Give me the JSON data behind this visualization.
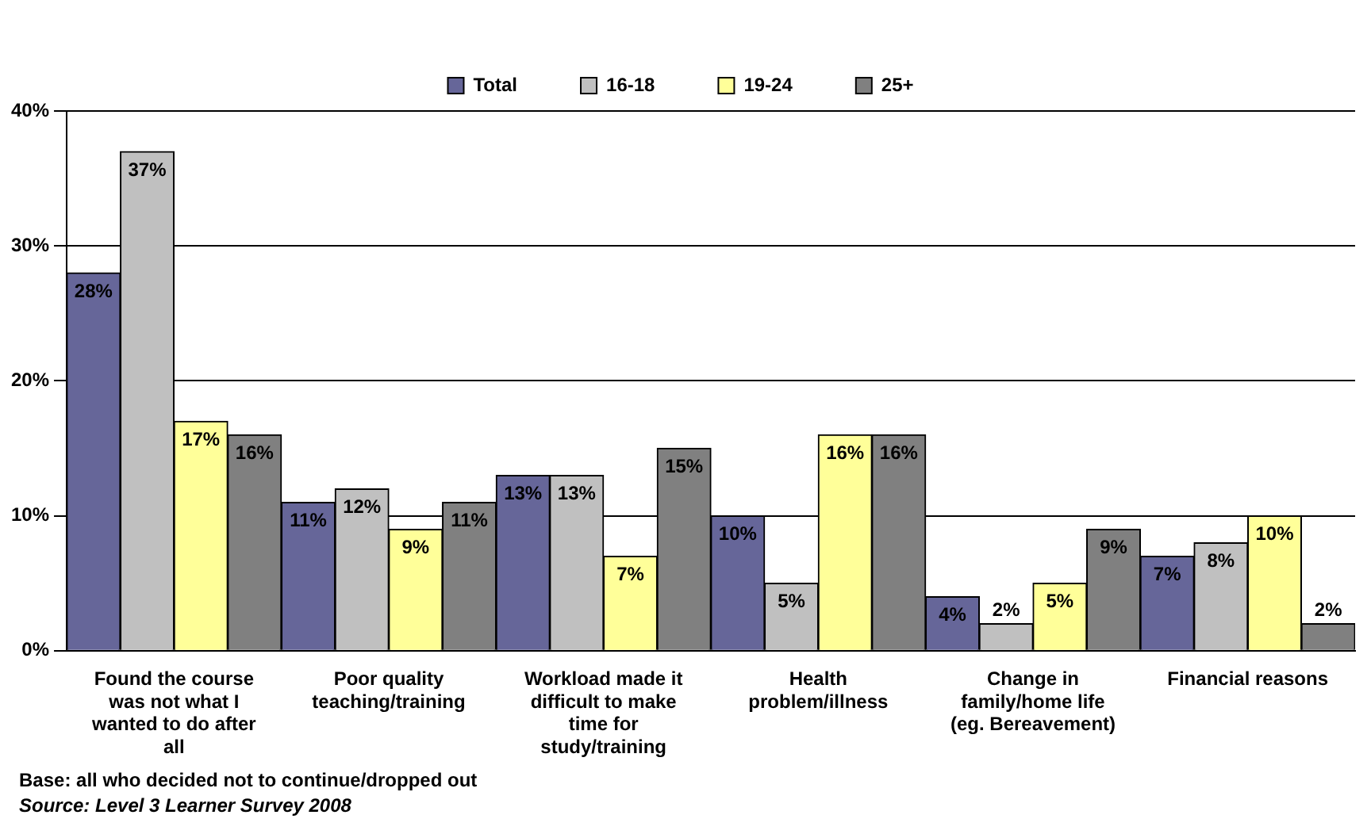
{
  "chart_data": {
    "type": "bar",
    "categories": [
      "Found the course was not what I wanted to do after all",
      "Poor quality teaching/training",
      "Workload made it difficult to make time for study/training",
      "Health problem/illness",
      "Change in family/home life (eg. Bereavement)",
      "Financial reasons"
    ],
    "series": [
      {
        "name": "Total",
        "color": "#666699",
        "values": [
          28,
          11,
          13,
          10,
          4,
          7
        ],
        "value_labels": [
          "28%",
          "11%",
          "13%",
          "10%",
          "4%",
          "7%"
        ]
      },
      {
        "name": "16-18",
        "color": "#c0c0c0",
        "values": [
          37,
          12,
          13,
          5,
          2,
          8
        ],
        "value_labels": [
          "37%",
          "12%",
          "13%",
          "5%",
          "2%",
          "8%"
        ]
      },
      {
        "name": "19-24",
        "color": "#ffff99",
        "values": [
          17,
          9,
          7,
          16,
          5,
          10
        ],
        "value_labels": [
          "17%",
          "9%",
          "7%",
          "16%",
          "5%",
          "10%"
        ]
      },
      {
        "name": "25+",
        "color": "#808080",
        "values": [
          16,
          11,
          15,
          16,
          9,
          2
        ],
        "value_labels": [
          "16%",
          "11%",
          "15%",
          "16%",
          "9%",
          "2%"
        ]
      }
    ],
    "ylim": [
      0,
      40
    ],
    "yticks": [
      {
        "value": 0,
        "label": "0%"
      },
      {
        "value": 10,
        "label": "10%"
      },
      {
        "value": 20,
        "label": "20%"
      },
      {
        "value": 30,
        "label": "30%"
      },
      {
        "value": 40,
        "label": "40%"
      }
    ],
    "grid": "y",
    "legend": "top",
    "annotations": [
      "Base: all who decided not to continue/dropped out",
      "Source: Level 3 Learner Survey 2008"
    ]
  }
}
